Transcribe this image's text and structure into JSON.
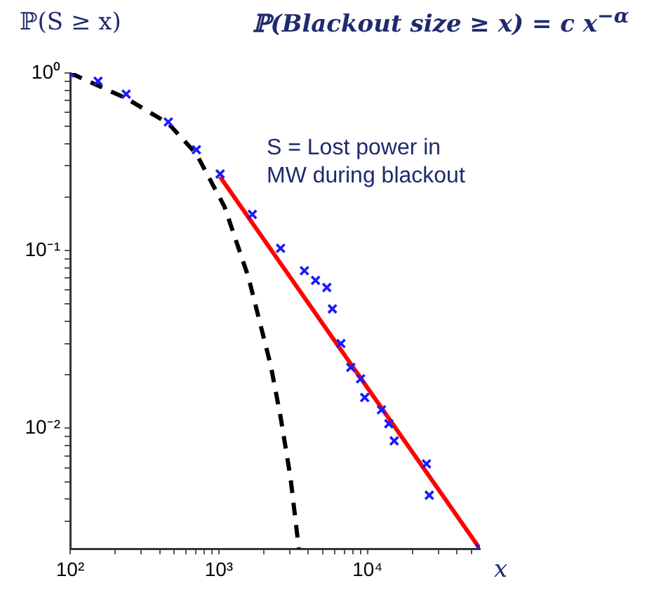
{
  "chart_data": {
    "type": "scatter",
    "title": "ℙ(Blackout size ≥ x) = c x$^{−α}$",
    "xlabel": "x",
    "ylabel": "ℙ(S ≥ x)",
    "annotations": [
      "S = Lost power in MW during blackout"
    ],
    "log": "xy",
    "xlim": [
      100,
      57000
    ],
    "ylim": [
      0.0021,
      1
    ],
    "xticks": [
      {
        "value": 100,
        "label": "10²"
      },
      {
        "value": 200,
        "label": null
      },
      {
        "value": 300,
        "label": null
      },
      {
        "value": 400,
        "label": null
      },
      {
        "value": 500,
        "label": null
      },
      {
        "value": 600,
        "label": null
      },
      {
        "value": 700,
        "label": null
      },
      {
        "value": 800,
        "label": null
      },
      {
        "value": 900,
        "label": null
      },
      {
        "value": 1000,
        "label": "10³"
      },
      {
        "value": 2000,
        "label": null
      },
      {
        "value": 3000,
        "label": null
      },
      {
        "value": 4000,
        "label": null
      },
      {
        "value": 5000,
        "label": null
      },
      {
        "value": 6000,
        "label": null
      },
      {
        "value": 7000,
        "label": null
      },
      {
        "value": 8000,
        "label": null
      },
      {
        "value": 9000,
        "label": null
      },
      {
        "value": 10000,
        "label": "10⁴"
      },
      {
        "value": 20000,
        "label": null
      },
      {
        "value": 30000,
        "label": null
      },
      {
        "value": 40000,
        "label": null
      },
      {
        "value": 50000,
        "label": null
      }
    ],
    "yticks": [
      {
        "value": 0.003,
        "label": null
      },
      {
        "value": 0.004,
        "label": null
      },
      {
        "value": 0.005,
        "label": null
      },
      {
        "value": 0.006,
        "label": null
      },
      {
        "value": 0.007,
        "label": null
      },
      {
        "value": 0.008,
        "label": null
      },
      {
        "value": 0.009,
        "label": null
      },
      {
        "value": 0.01,
        "label": "10⁻²"
      },
      {
        "value": 0.02,
        "label": null
      },
      {
        "value": 0.03,
        "label": null
      },
      {
        "value": 0.04,
        "label": null
      },
      {
        "value": 0.05,
        "label": null
      },
      {
        "value": 0.06,
        "label": null
      },
      {
        "value": 0.07,
        "label": null
      },
      {
        "value": 0.08,
        "label": null
      },
      {
        "value": 0.09,
        "label": null
      },
      {
        "value": 0.1,
        "label": "10⁻¹"
      },
      {
        "value": 0.2,
        "label": null
      },
      {
        "value": 0.3,
        "label": null
      },
      {
        "value": 0.4,
        "label": null
      },
      {
        "value": 0.5,
        "label": null
      },
      {
        "value": 0.6,
        "label": null
      },
      {
        "value": 0.7,
        "label": null
      },
      {
        "value": 0.8,
        "label": null
      },
      {
        "value": 0.9,
        "label": null
      },
      {
        "value": 1,
        "label": "10⁰"
      }
    ],
    "series": [
      {
        "type": "scatter",
        "color": "#1a1aff",
        "marker": "cross",
        "x": [
          100,
          154,
          238,
          457,
          706,
          1020,
          1680,
          2600,
          3760,
          4470,
          5320,
          5800,
          6620,
          7710,
          8980,
          9570,
          12400,
          13900,
          15100,
          24900,
          26000,
          56900
        ],
        "values": [
          1,
          0.9,
          0.76,
          0.53,
          0.37,
          0.27,
          0.16,
          0.103,
          0.077,
          0.068,
          0.062,
          0.047,
          0.03,
          0.022,
          0.019,
          0.0149,
          0.0127,
          0.0106,
          0.0085,
          0.0063,
          0.0042,
          0.0021
        ]
      },
      {
        "type": "line",
        "color": "#ff0000",
        "line_style": "solid",
        "marker": "none",
        "x": [
          1020,
          56900
        ],
        "values": [
          0.26,
          0.0021
        ]
      },
      {
        "type": "line",
        "color": "#000000",
        "line_style": "dashed",
        "marker": "none",
        "x": [
          100,
          238,
          457,
          706,
          1090,
          1580,
          2230,
          2600,
          3030,
          3450
        ],
        "values": [
          1,
          0.72,
          0.52,
          0.35,
          0.177,
          0.071,
          0.0227,
          0.0116,
          0.0053,
          0.0021
        ]
      }
    ]
  }
}
